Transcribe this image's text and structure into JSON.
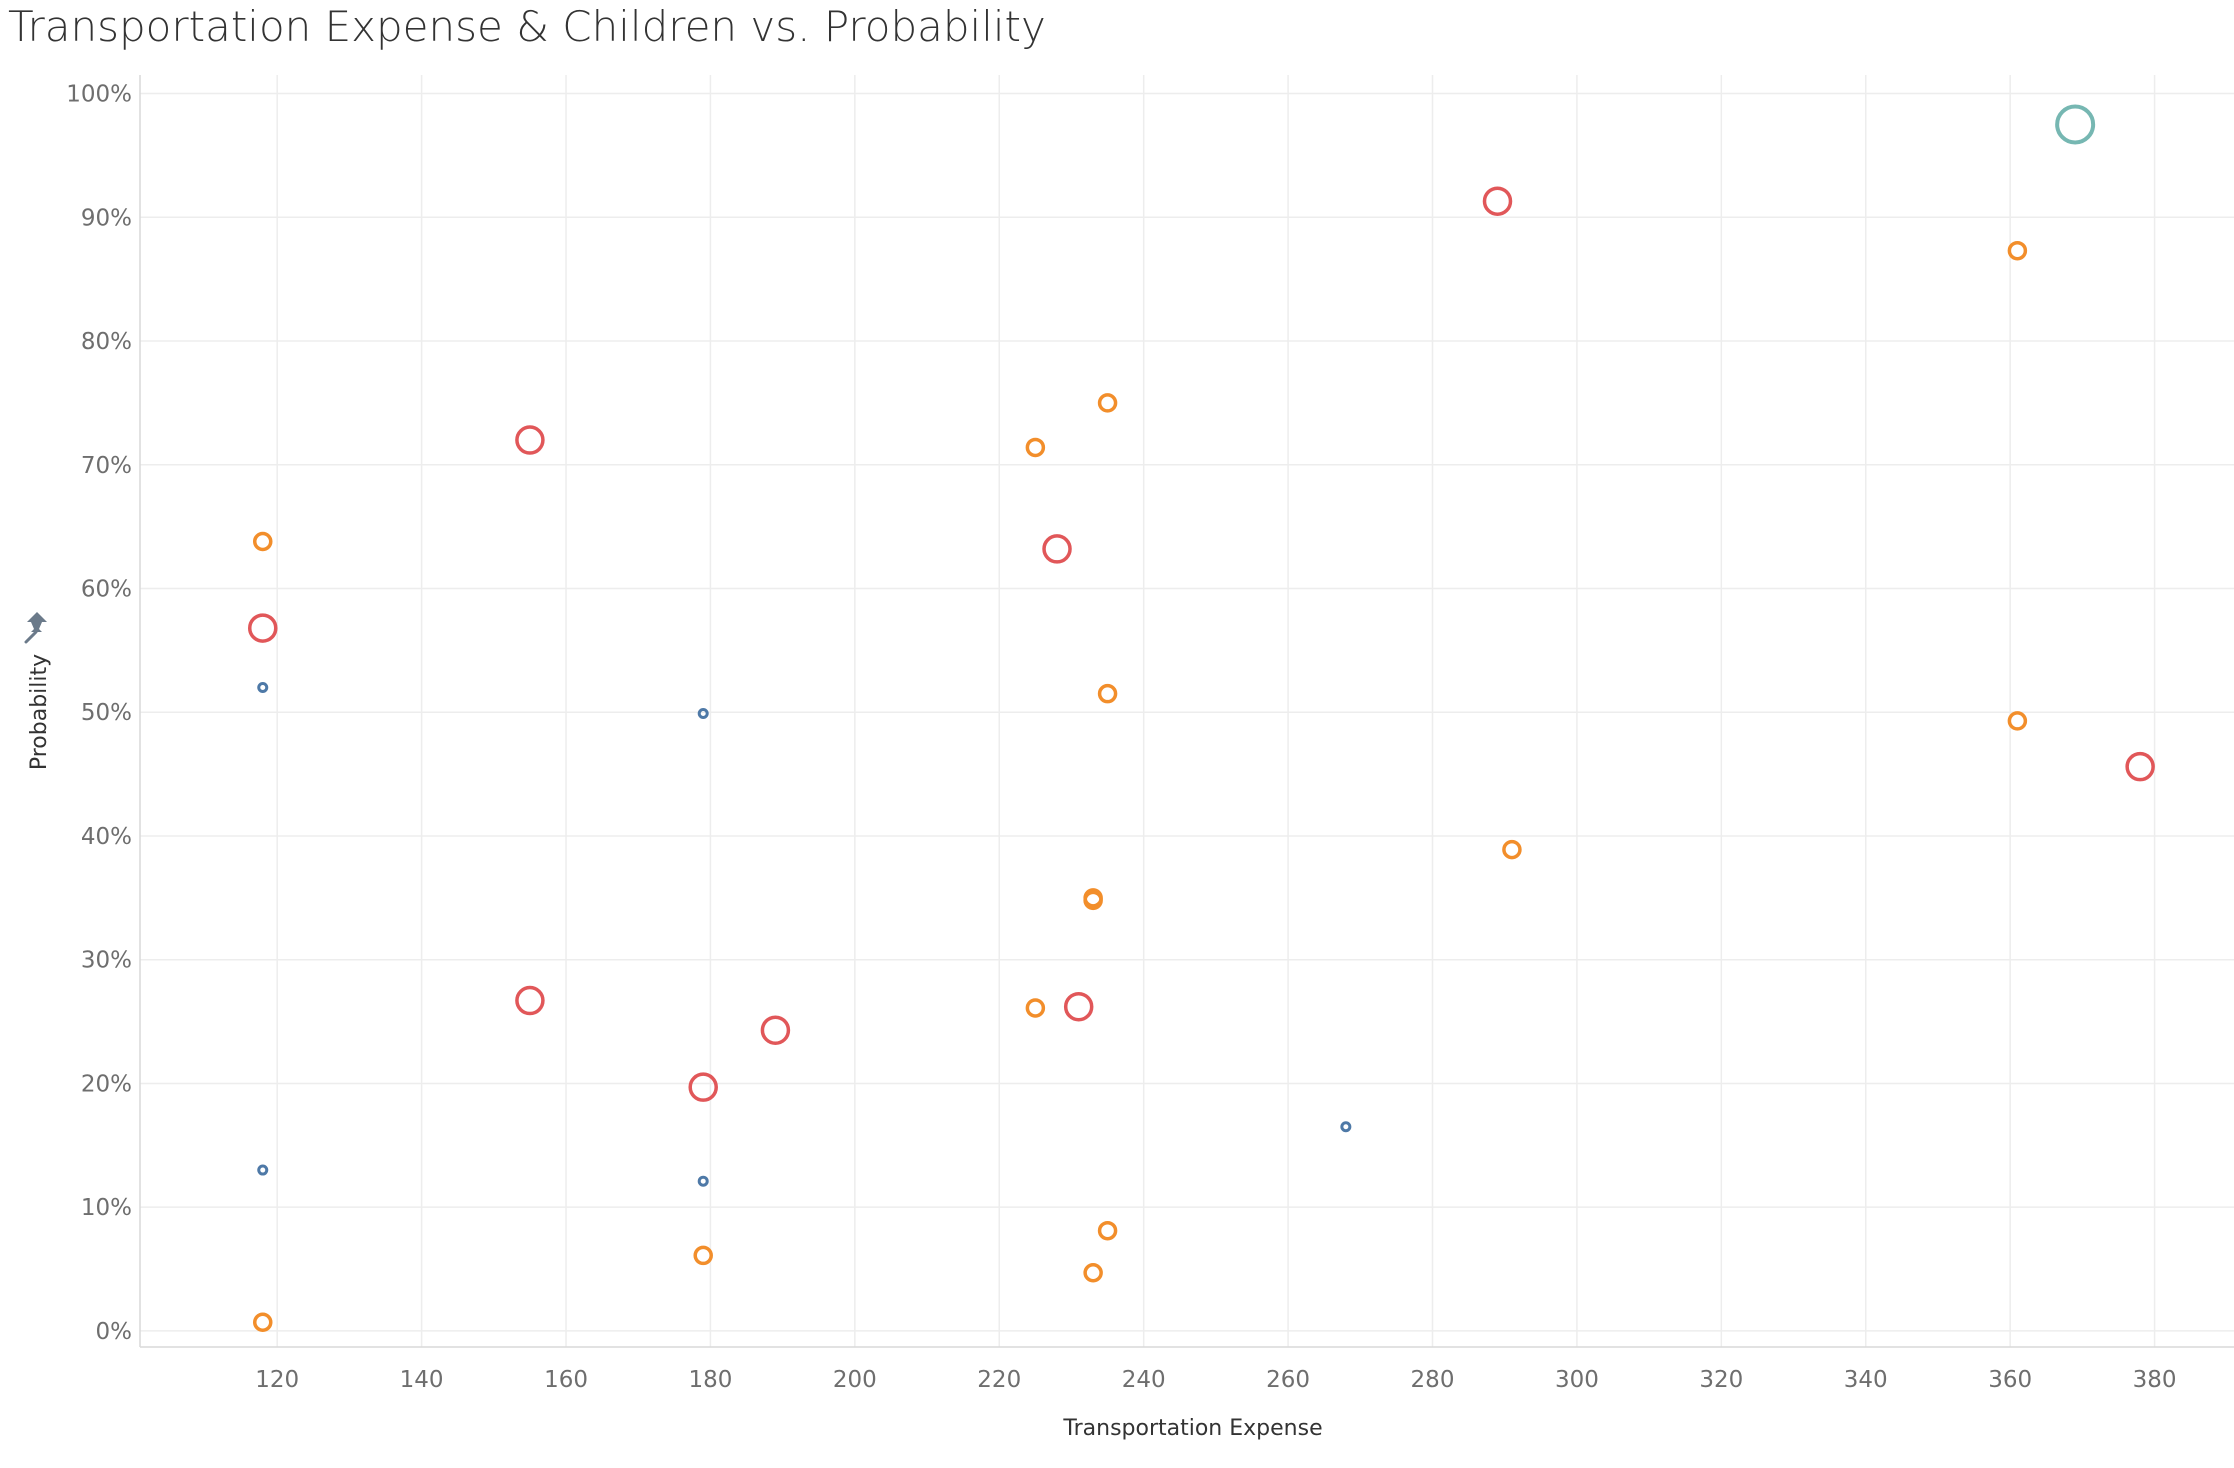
{
  "chart_data": {
    "type": "scatter",
    "title": "Transportation Expense & Children vs. Probability",
    "xlabel": "Transportation Expense",
    "ylabel": "Probability",
    "xlim": [
      101,
      391
    ],
    "ylim": [
      -1.3,
      101.5
    ],
    "x_ticks": [
      120,
      140,
      160,
      180,
      200,
      220,
      240,
      260,
      280,
      300,
      320,
      340,
      360,
      380
    ],
    "y_ticks": [
      0,
      10,
      20,
      30,
      40,
      50,
      60,
      70,
      80,
      90,
      100
    ],
    "y_tick_suffix": "%",
    "grid": true,
    "legend": "none",
    "color_by": "Children",
    "size_by": "Children",
    "series_colors": [
      "#4e79a7",
      "#f28e2b",
      "#e15759",
      "#76b7b2"
    ],
    "series_sizes": [
      4,
      8,
      13,
      18
    ],
    "series": [
      {
        "points": [
          {
            "x": 118,
            "y": 52.0
          },
          {
            "x": 179,
            "y": 49.9
          },
          {
            "x": 118,
            "y": 13.0
          },
          {
            "x": 179,
            "y": 12.1
          },
          {
            "x": 268,
            "y": 16.5
          }
        ]
      },
      {
        "points": [
          {
            "x": 118,
            "y": 63.8
          },
          {
            "x": 225,
            "y": 71.4
          },
          {
            "x": 235,
            "y": 75.0
          },
          {
            "x": 361,
            "y": 87.3
          },
          {
            "x": 235,
            "y": 51.5
          },
          {
            "x": 361,
            "y": 49.3
          },
          {
            "x": 291,
            "y": 38.9
          },
          {
            "x": 233,
            "y": 34.8
          },
          {
            "x": 233,
            "y": 35.0
          },
          {
            "x": 225,
            "y": 26.1
          },
          {
            "x": 235,
            "y": 8.1
          },
          {
            "x": 179,
            "y": 6.1
          },
          {
            "x": 233,
            "y": 4.7
          },
          {
            "x": 118,
            "y": 0.7
          }
        ]
      },
      {
        "points": [
          {
            "x": 289,
            "y": 91.3
          },
          {
            "x": 155,
            "y": 72.0
          },
          {
            "x": 228,
            "y": 63.2
          },
          {
            "x": 118,
            "y": 56.8
          },
          {
            "x": 378,
            "y": 45.6
          },
          {
            "x": 155,
            "y": 26.7
          },
          {
            "x": 231,
            "y": 26.2
          },
          {
            "x": 189,
            "y": 24.3
          },
          {
            "x": 179,
            "y": 19.7
          }
        ]
      },
      {
        "points": [
          {
            "x": 369,
            "y": 97.5
          }
        ]
      }
    ]
  }
}
